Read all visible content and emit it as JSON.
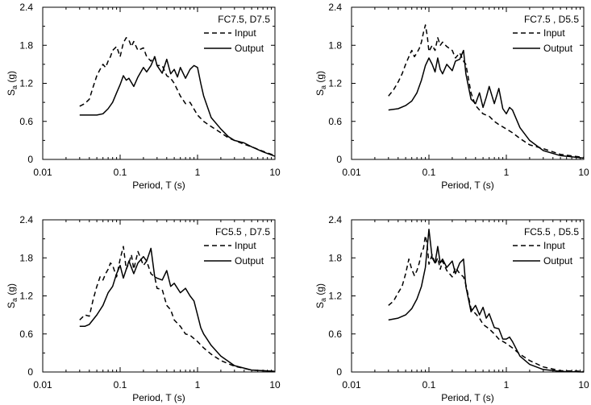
{
  "chart_data": [
    {
      "type": "line",
      "title": "FC7.5, D7.5",
      "xlabel": "Period, T (s)",
      "ylabel": "S_a (g)",
      "ylabel_main": "S",
      "ylabel_sub": "a",
      "ylabel_unit": " (g)",
      "xscale": "log",
      "xlim": [
        0.01,
        10
      ],
      "ylim": [
        0,
        2.4
      ],
      "xticks": [
        "0.01",
        "0.1",
        "1",
        "10"
      ],
      "yticks": [
        "0",
        "0.6",
        "1.2",
        "1.8",
        "2.4"
      ],
      "legend": "top-right",
      "series": [
        {
          "name": "Input",
          "style": "dashed",
          "x": [
            0.03,
            0.035,
            0.04,
            0.045,
            0.05,
            0.055,
            0.06,
            0.065,
            0.07,
            0.075,
            0.08,
            0.09,
            0.1,
            0.11,
            0.12,
            0.13,
            0.14,
            0.15,
            0.17,
            0.2,
            0.22,
            0.25,
            0.28,
            0.3,
            0.35,
            0.4,
            0.45,
            0.5,
            0.6,
            0.7,
            0.8,
            1.0,
            1.2,
            1.5,
            2.0,
            2.5,
            3.0,
            4.0,
            5.0,
            7.0,
            10.0
          ],
          "values": [
            0.84,
            0.88,
            0.95,
            1.15,
            1.32,
            1.42,
            1.5,
            1.45,
            1.55,
            1.62,
            1.72,
            1.78,
            1.62,
            1.84,
            1.92,
            1.88,
            1.78,
            1.86,
            1.72,
            1.76,
            1.62,
            1.55,
            1.62,
            1.48,
            1.48,
            1.32,
            1.28,
            1.2,
            1.0,
            0.88,
            0.9,
            0.7,
            0.6,
            0.52,
            0.42,
            0.34,
            0.3,
            0.24,
            0.2,
            0.13,
            0.06
          ]
        },
        {
          "name": "Output",
          "style": "solid",
          "x": [
            0.03,
            0.04,
            0.05,
            0.06,
            0.07,
            0.08,
            0.09,
            0.1,
            0.11,
            0.12,
            0.13,
            0.15,
            0.17,
            0.2,
            0.22,
            0.25,
            0.28,
            0.3,
            0.35,
            0.4,
            0.45,
            0.5,
            0.55,
            0.6,
            0.7,
            0.8,
            0.9,
            1.0,
            1.1,
            1.2,
            1.5,
            2.0,
            2.5,
            3.0,
            4.0,
            5.0,
            7.0,
            10.0
          ],
          "values": [
            0.7,
            0.7,
            0.7,
            0.72,
            0.8,
            0.9,
            1.05,
            1.18,
            1.32,
            1.25,
            1.28,
            1.15,
            1.3,
            1.45,
            1.38,
            1.48,
            1.62,
            1.48,
            1.36,
            1.58,
            1.35,
            1.42,
            1.3,
            1.45,
            1.28,
            1.42,
            1.48,
            1.45,
            1.2,
            1.0,
            0.66,
            0.48,
            0.36,
            0.3,
            0.26,
            0.2,
            0.12,
            0.05
          ]
        }
      ]
    },
    {
      "type": "line",
      "title": "FC7.5 , D5.5",
      "xlabel": "Period, T (s)",
      "ylabel": "S_a (g)",
      "ylabel_main": "S",
      "ylabel_sub": "a",
      "ylabel_unit": " (g)",
      "xscale": "log",
      "xlim": [
        0.01,
        10
      ],
      "ylim": [
        0,
        2.4
      ],
      "xticks": [
        "0.01",
        "0.1",
        "1",
        "10"
      ],
      "yticks": [
        "0",
        "0.6",
        "1.2",
        "1.8",
        "2.4"
      ],
      "legend": "top-right",
      "series": [
        {
          "name": "Input",
          "style": "dashed",
          "x": [
            0.03,
            0.035,
            0.04,
            0.045,
            0.05,
            0.055,
            0.06,
            0.065,
            0.07,
            0.075,
            0.08,
            0.085,
            0.09,
            0.095,
            0.1,
            0.11,
            0.12,
            0.13,
            0.14,
            0.15,
            0.17,
            0.2,
            0.22,
            0.25,
            0.28,
            0.3,
            0.35,
            0.4,
            0.45,
            0.5,
            0.6,
            0.7,
            0.8,
            1.0,
            1.2,
            1.5,
            2.0,
            3.0,
            5.0,
            10.0
          ],
          "values": [
            1.0,
            1.1,
            1.22,
            1.35,
            1.5,
            1.62,
            1.72,
            1.62,
            1.68,
            1.75,
            1.85,
            2.0,
            2.12,
            1.95,
            1.7,
            1.8,
            1.72,
            1.92,
            1.8,
            1.85,
            1.78,
            1.72,
            1.6,
            1.68,
            1.55,
            1.5,
            1.05,
            0.85,
            0.78,
            0.72,
            0.68,
            0.6,
            0.55,
            0.48,
            0.42,
            0.33,
            0.23,
            0.17,
            0.08,
            0.03
          ]
        },
        {
          "name": "Output",
          "style": "solid",
          "x": [
            0.03,
            0.04,
            0.05,
            0.06,
            0.07,
            0.08,
            0.09,
            0.1,
            0.11,
            0.12,
            0.13,
            0.14,
            0.15,
            0.17,
            0.2,
            0.22,
            0.25,
            0.28,
            0.3,
            0.35,
            0.4,
            0.45,
            0.5,
            0.55,
            0.6,
            0.7,
            0.8,
            0.9,
            1.0,
            1.1,
            1.2,
            1.5,
            2.0,
            3.0,
            5.0,
            10.0
          ],
          "values": [
            0.78,
            0.8,
            0.85,
            0.92,
            1.05,
            1.25,
            1.48,
            1.6,
            1.5,
            1.38,
            1.6,
            1.42,
            1.35,
            1.5,
            1.4,
            1.55,
            1.58,
            1.72,
            1.35,
            0.95,
            0.88,
            1.05,
            0.82,
            0.98,
            1.15,
            0.88,
            1.12,
            0.8,
            0.72,
            0.82,
            0.78,
            0.5,
            0.3,
            0.14,
            0.06,
            0.02
          ]
        }
      ]
    },
    {
      "type": "line",
      "title": "FC5.5 , D7.5",
      "xlabel": "Period, T (s)",
      "ylabel": "S_a (g)",
      "ylabel_main": "S",
      "ylabel_sub": "a",
      "ylabel_unit": " (g)",
      "xscale": "log",
      "xlim": [
        0.01,
        10
      ],
      "ylim": [
        0,
        2.4
      ],
      "xticks": [
        "0.01",
        "0.1",
        "1",
        "10"
      ],
      "yticks": [
        "0",
        "0.6",
        "1.2",
        "1.8",
        "2.4"
      ],
      "legend": "top-right",
      "series": [
        {
          "name": "Input",
          "style": "dashed",
          "x": [
            0.03,
            0.035,
            0.04,
            0.045,
            0.05,
            0.055,
            0.06,
            0.065,
            0.07,
            0.075,
            0.08,
            0.09,
            0.1,
            0.11,
            0.12,
            0.13,
            0.14,
            0.15,
            0.17,
            0.2,
            0.22,
            0.25,
            0.28,
            0.3,
            0.35,
            0.4,
            0.45,
            0.5,
            0.6,
            0.7,
            0.8,
            1.0,
            1.2,
            1.5,
            2.0,
            3.0,
            5.0,
            10.0
          ],
          "values": [
            0.82,
            0.9,
            0.88,
            1.15,
            1.35,
            1.5,
            1.45,
            1.55,
            1.62,
            1.72,
            1.68,
            1.5,
            1.78,
            1.98,
            1.62,
            1.72,
            1.85,
            1.62,
            1.9,
            1.68,
            1.75,
            1.55,
            1.5,
            1.32,
            1.3,
            1.05,
            0.98,
            0.82,
            0.72,
            0.6,
            0.58,
            0.48,
            0.38,
            0.28,
            0.18,
            0.09,
            0.03,
            0.01
          ]
        },
        {
          "name": "Output",
          "style": "solid",
          "x": [
            0.03,
            0.035,
            0.04,
            0.05,
            0.06,
            0.07,
            0.08,
            0.09,
            0.1,
            0.11,
            0.12,
            0.13,
            0.15,
            0.17,
            0.2,
            0.22,
            0.25,
            0.28,
            0.3,
            0.35,
            0.4,
            0.45,
            0.5,
            0.6,
            0.7,
            0.8,
            0.9,
            1.0,
            1.1,
            1.2,
            1.5,
            2.0,
            3.0,
            5.0,
            10.0
          ],
          "values": [
            0.72,
            0.72,
            0.75,
            0.9,
            1.05,
            1.25,
            1.35,
            1.55,
            1.68,
            1.48,
            1.62,
            1.75,
            1.55,
            1.72,
            1.82,
            1.75,
            1.95,
            1.5,
            1.48,
            1.45,
            1.6,
            1.35,
            1.4,
            1.25,
            1.32,
            1.2,
            1.12,
            0.9,
            0.7,
            0.6,
            0.42,
            0.25,
            0.1,
            0.03,
            0.01
          ]
        }
      ]
    },
    {
      "type": "line",
      "title": "FC5.5 , D5.5",
      "xlabel": "Period, T (s)",
      "ylabel": "S_a (g)",
      "ylabel_main": "S",
      "ylabel_sub": "a",
      "ylabel_unit": " (g)",
      "xscale": "log",
      "xlim": [
        0.01,
        10
      ],
      "ylim": [
        0,
        2.4
      ],
      "xticks": [
        "0.01",
        "0.1",
        "1",
        "10"
      ],
      "yticks": [
        "0",
        "0.6",
        "1.2",
        "1.8",
        "2.4"
      ],
      "legend": "top-right",
      "series": [
        {
          "name": "Input",
          "style": "dashed",
          "x": [
            0.03,
            0.035,
            0.04,
            0.045,
            0.05,
            0.055,
            0.06,
            0.065,
            0.07,
            0.075,
            0.08,
            0.085,
            0.09,
            0.095,
            0.1,
            0.11,
            0.12,
            0.13,
            0.14,
            0.15,
            0.17,
            0.2,
            0.22,
            0.25,
            0.28,
            0.3,
            0.35,
            0.4,
            0.45,
            0.5,
            0.6,
            0.7,
            0.8,
            1.0,
            1.2,
            1.5,
            2.0,
            3.0,
            5.0,
            10.0
          ],
          "values": [
            1.05,
            1.12,
            1.25,
            1.35,
            1.55,
            1.78,
            1.62,
            1.52,
            1.6,
            1.72,
            1.88,
            1.95,
            2.15,
            2.0,
            1.7,
            1.85,
            1.7,
            1.8,
            1.62,
            1.75,
            1.6,
            1.5,
            1.65,
            1.55,
            1.5,
            1.38,
            1.0,
            0.92,
            0.85,
            0.75,
            0.68,
            0.6,
            0.52,
            0.45,
            0.38,
            0.28,
            0.18,
            0.08,
            0.02,
            0.01
          ]
        },
        {
          "name": "Output",
          "style": "solid",
          "x": [
            0.03,
            0.04,
            0.05,
            0.06,
            0.07,
            0.08,
            0.09,
            0.1,
            0.11,
            0.12,
            0.13,
            0.14,
            0.15,
            0.17,
            0.2,
            0.22,
            0.25,
            0.28,
            0.3,
            0.35,
            0.4,
            0.45,
            0.5,
            0.55,
            0.6,
            0.7,
            0.8,
            0.9,
            1.0,
            1.1,
            1.2,
            1.5,
            2.0,
            3.0,
            5.0,
            10.0
          ],
          "values": [
            0.82,
            0.85,
            0.9,
            1.0,
            1.15,
            1.35,
            1.65,
            2.25,
            1.8,
            1.72,
            1.98,
            1.72,
            1.78,
            1.65,
            1.75,
            1.55,
            1.72,
            1.78,
            1.35,
            0.95,
            1.05,
            0.9,
            1.02,
            0.85,
            0.92,
            0.7,
            0.68,
            0.52,
            0.52,
            0.55,
            0.48,
            0.25,
            0.12,
            0.04,
            0.01,
            0.0
          ]
        }
      ]
    }
  ]
}
